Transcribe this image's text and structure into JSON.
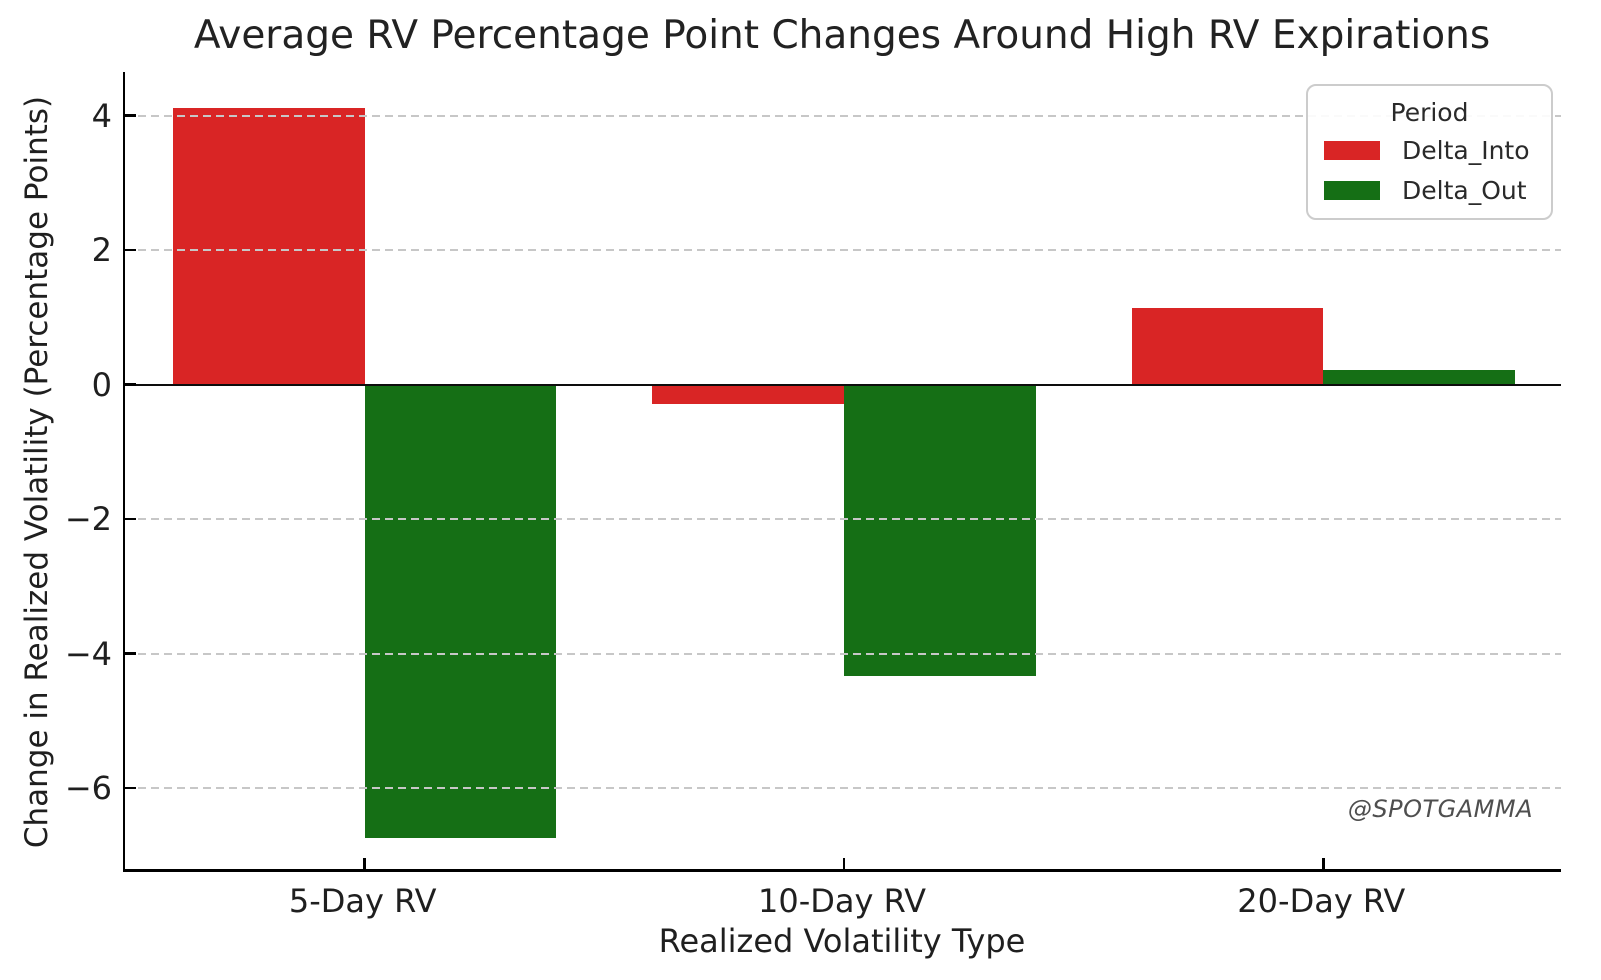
{
  "chart_data": {
    "type": "bar",
    "title": "Average RV Percentage Point Changes Around High RV Expirations",
    "xlabel": "Realized Volatility Type",
    "ylabel": "Change in Realized Volatility (Percentage Points)",
    "categories": [
      "5-Day RV",
      "10-Day RV",
      "20-Day RV"
    ],
    "series": [
      {
        "name": "Delta_Into",
        "color": "#d92525",
        "values": [
          4.12,
          -0.29,
          1.14
        ]
      },
      {
        "name": "Delta_Out",
        "color": "#156f15",
        "values": [
          -6.75,
          -4.33,
          0.22
        ]
      }
    ],
    "ylim": [
      -7.25,
      4.65
    ],
    "yticks": [
      4,
      2,
      0,
      -2,
      -4,
      -6
    ],
    "zero_line": 0,
    "grid": "horizontal dashed, drawn above bars",
    "legend": {
      "title": "Period",
      "position": "upper right"
    },
    "group_width_fraction": 0.8,
    "watermark": "@SPOTGAMMA"
  }
}
